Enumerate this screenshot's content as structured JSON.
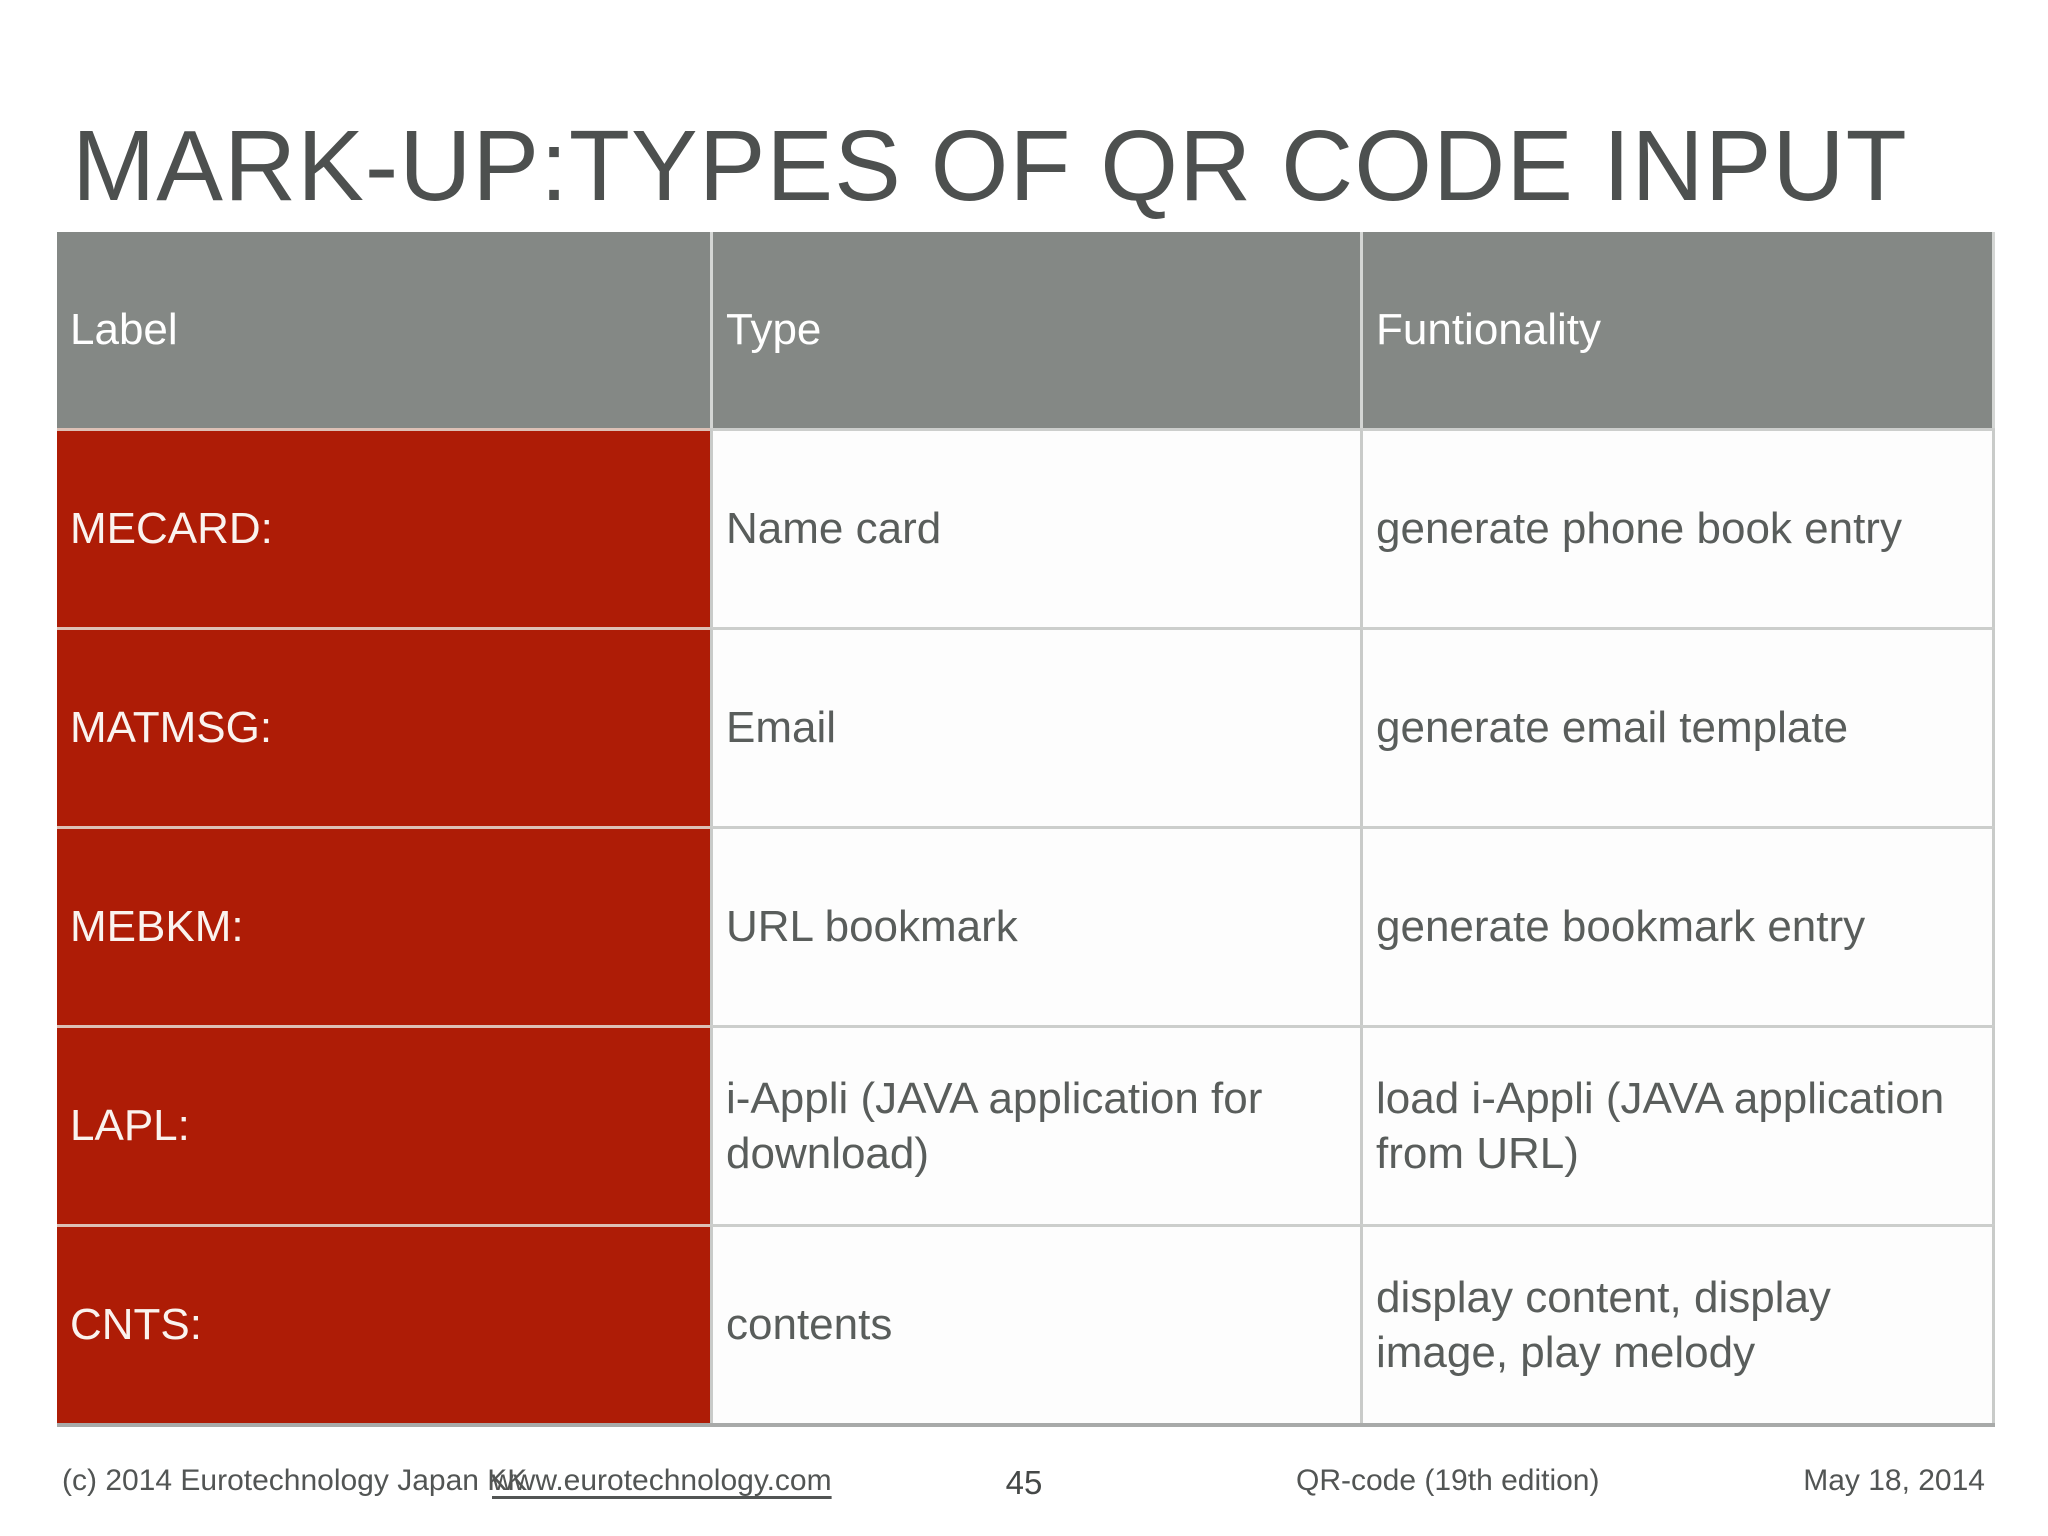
{
  "slide": {
    "title": "MARK-UP:TYPES OF QR CODE INPUT"
  },
  "table": {
    "columns": {
      "label": "Label",
      "type": "Type",
      "functionality": "Funtionality"
    },
    "rows": [
      {
        "label": "MECARD:",
        "type": "Name card",
        "functionality": "generate phone book entry"
      },
      {
        "label": "MATMSG:",
        "type": "Email",
        "functionality": "generate email template"
      },
      {
        "label": "MEBKM:",
        "type": "URL bookmark",
        "functionality": "generate bookmark entry"
      },
      {
        "label": "LAPL:",
        "type": "i-Appli (JAVA application for download)",
        "functionality": "load i-Appli (JAVA application from URL)"
      },
      {
        "label": "CNTS:",
        "type": "contents",
        "functionality": "display content, display image, play melody"
      }
    ]
  },
  "footer": {
    "copyright": "(c) 2014 Eurotechnology Japan KK",
    "link": "www.eurotechnology.com",
    "page_number": "45",
    "edition": "QR-code (19th edition)",
    "date": "May 18, 2014"
  },
  "colors": {
    "header_bg": "#848885",
    "label_column_bg": "#ae1c06",
    "title_text": "#4d504f",
    "cell_text": "#595d5b",
    "header_text": "#ffffff"
  }
}
